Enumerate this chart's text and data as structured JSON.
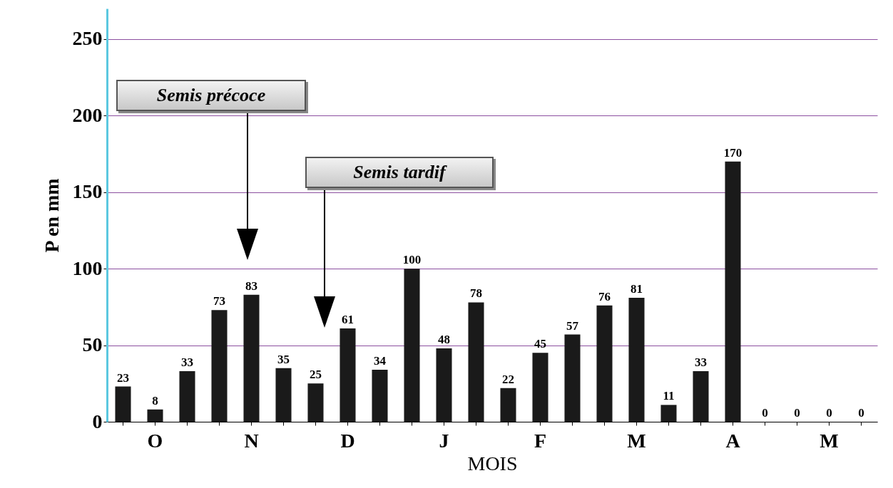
{
  "chart_data": {
    "type": "bar",
    "xlabel": "MOIS",
    "ylabel": "P en mm",
    "categories": [
      null,
      "O",
      null,
      null,
      "N",
      null,
      null,
      "D",
      null,
      null,
      "J",
      null,
      null,
      "F",
      null,
      null,
      "M",
      null,
      null,
      "A",
      null,
      null,
      "M",
      null
    ],
    "values": [
      23,
      8,
      33,
      73,
      83,
      35,
      25,
      61,
      34,
      100,
      48,
      78,
      22,
      45,
      57,
      76,
      81,
      11,
      33,
      170,
      0,
      0,
      0,
      0
    ],
    "color": "#1a1a1a",
    "ylim": [
      0,
      270
    ],
    "yticks": [
      0,
      50,
      100,
      150,
      200,
      250
    ],
    "grid": "y",
    "data_labels": true,
    "annotations": [
      "Semis précoce",
      "Semis tardif"
    ]
  }
}
